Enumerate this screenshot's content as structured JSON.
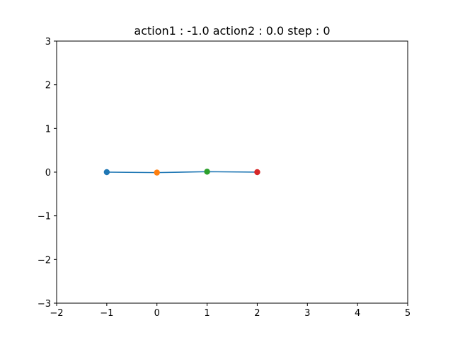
{
  "chart_data": {
    "type": "line",
    "title": "action1 : -1.0 action2 : 0.0 step : 0",
    "xlabel": "",
    "ylabel": "",
    "xlim": [
      -2,
      5
    ],
    "ylim": [
      -3,
      3
    ],
    "x_ticks": [
      -2,
      -1,
      0,
      1,
      2,
      3,
      4,
      5
    ],
    "y_ticks": [
      -3,
      -2,
      -1,
      0,
      1,
      2,
      3
    ],
    "x_tick_labels": [
      "−2",
      "−1",
      "0",
      "1",
      "2",
      "3",
      "4",
      "5"
    ],
    "y_tick_labels": [
      "−3",
      "−2",
      "−1",
      "0",
      "1",
      "2",
      "3"
    ],
    "grid": false,
    "legend": "none",
    "line": {
      "x": [
        -1.0,
        0.0,
        1.0,
        2.0
      ],
      "y": [
        0.0,
        -0.01,
        0.01,
        0.0
      ],
      "color": "#1f77b4"
    },
    "points": [
      {
        "x": -1.0,
        "y": 0.0,
        "color": "#1f77b4"
      },
      {
        "x": 0.0,
        "y": -0.01,
        "color": "#ff7f0e"
      },
      {
        "x": 1.0,
        "y": 0.01,
        "color": "#2ca02c"
      },
      {
        "x": 2.0,
        "y": 0.0,
        "color": "#d62728"
      }
    ]
  }
}
